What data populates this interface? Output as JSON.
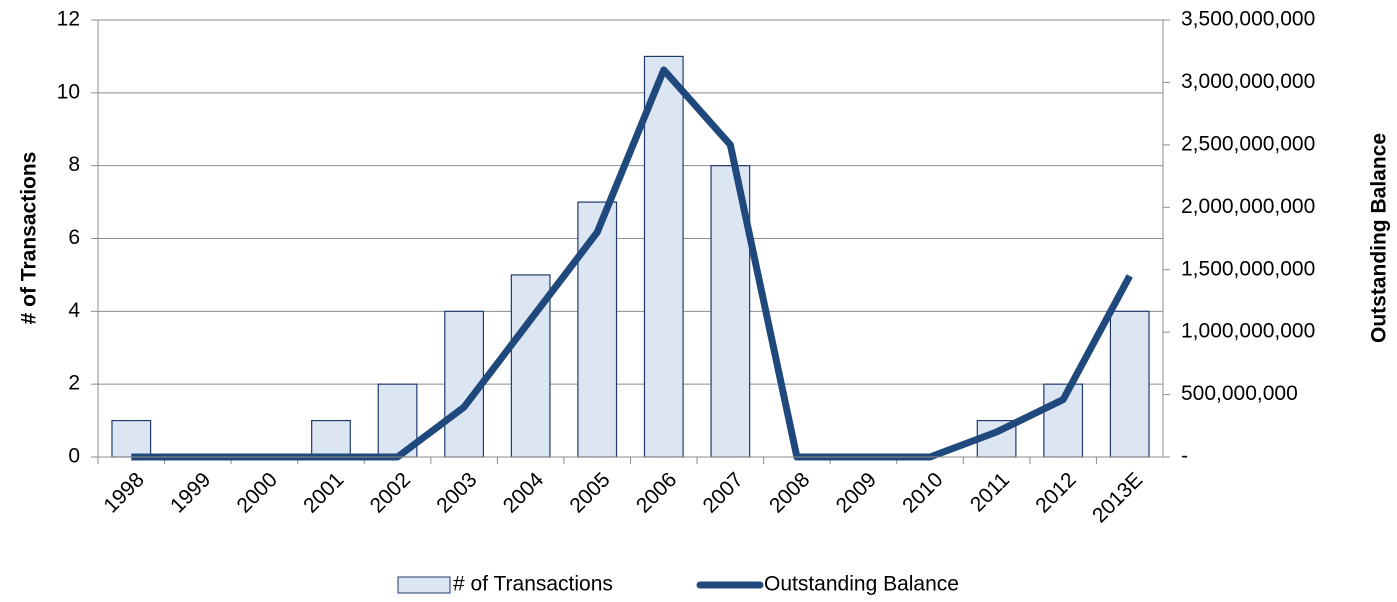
{
  "chart_data": {
    "type": "combo",
    "categories": [
      "1998",
      "1999",
      "2000",
      "2001",
      "2002",
      "2003",
      "2004",
      "2005",
      "2006",
      "2007",
      "2008",
      "2009",
      "2010",
      "2011",
      "2012",
      "2013E"
    ],
    "series": [
      {
        "name": "# of Transactions",
        "type": "bar",
        "color": "#dce6f2",
        "border": "#1f3b6e",
        "values": [
          1,
          0,
          0,
          1,
          2,
          4,
          5,
          7,
          11,
          8,
          0,
          0,
          0,
          1,
          2,
          4
        ]
      },
      {
        "name": "Outstanding Balance",
        "type": "line",
        "axis": "y2",
        "color": "#1f497d",
        "values": [
          0,
          0,
          0,
          0,
          0,
          400000000,
          1100000000,
          1800000000,
          3100000000,
          2500000000,
          0,
          0,
          0,
          200000000,
          460000000,
          1450000000
        ]
      }
    ],
    "ylabel": "# of Transactions",
    "y2label": "Outstanding Balance",
    "ylim": [
      0,
      12
    ],
    "yticks": [
      0,
      2,
      4,
      6,
      8,
      10,
      12
    ],
    "y2lim": [
      0,
      3500000000
    ],
    "y2ticks": [
      {
        "value": 0,
        "label": "-"
      },
      {
        "value": 500000000,
        "label": "500,000,000"
      },
      {
        "value": 1000000000,
        "label": "1,000,000,000"
      },
      {
        "value": 1500000000,
        "label": "1,500,000,000"
      },
      {
        "value": 2000000000,
        "label": "2,000,000,000"
      },
      {
        "value": 2500000000,
        "label": "2,500,000,000"
      },
      {
        "value": 3000000000,
        "label": "3,000,000,000"
      },
      {
        "value": 3500000000,
        "label": "3,500,000,000"
      }
    ],
    "grid": true,
    "legend": "bottom"
  }
}
